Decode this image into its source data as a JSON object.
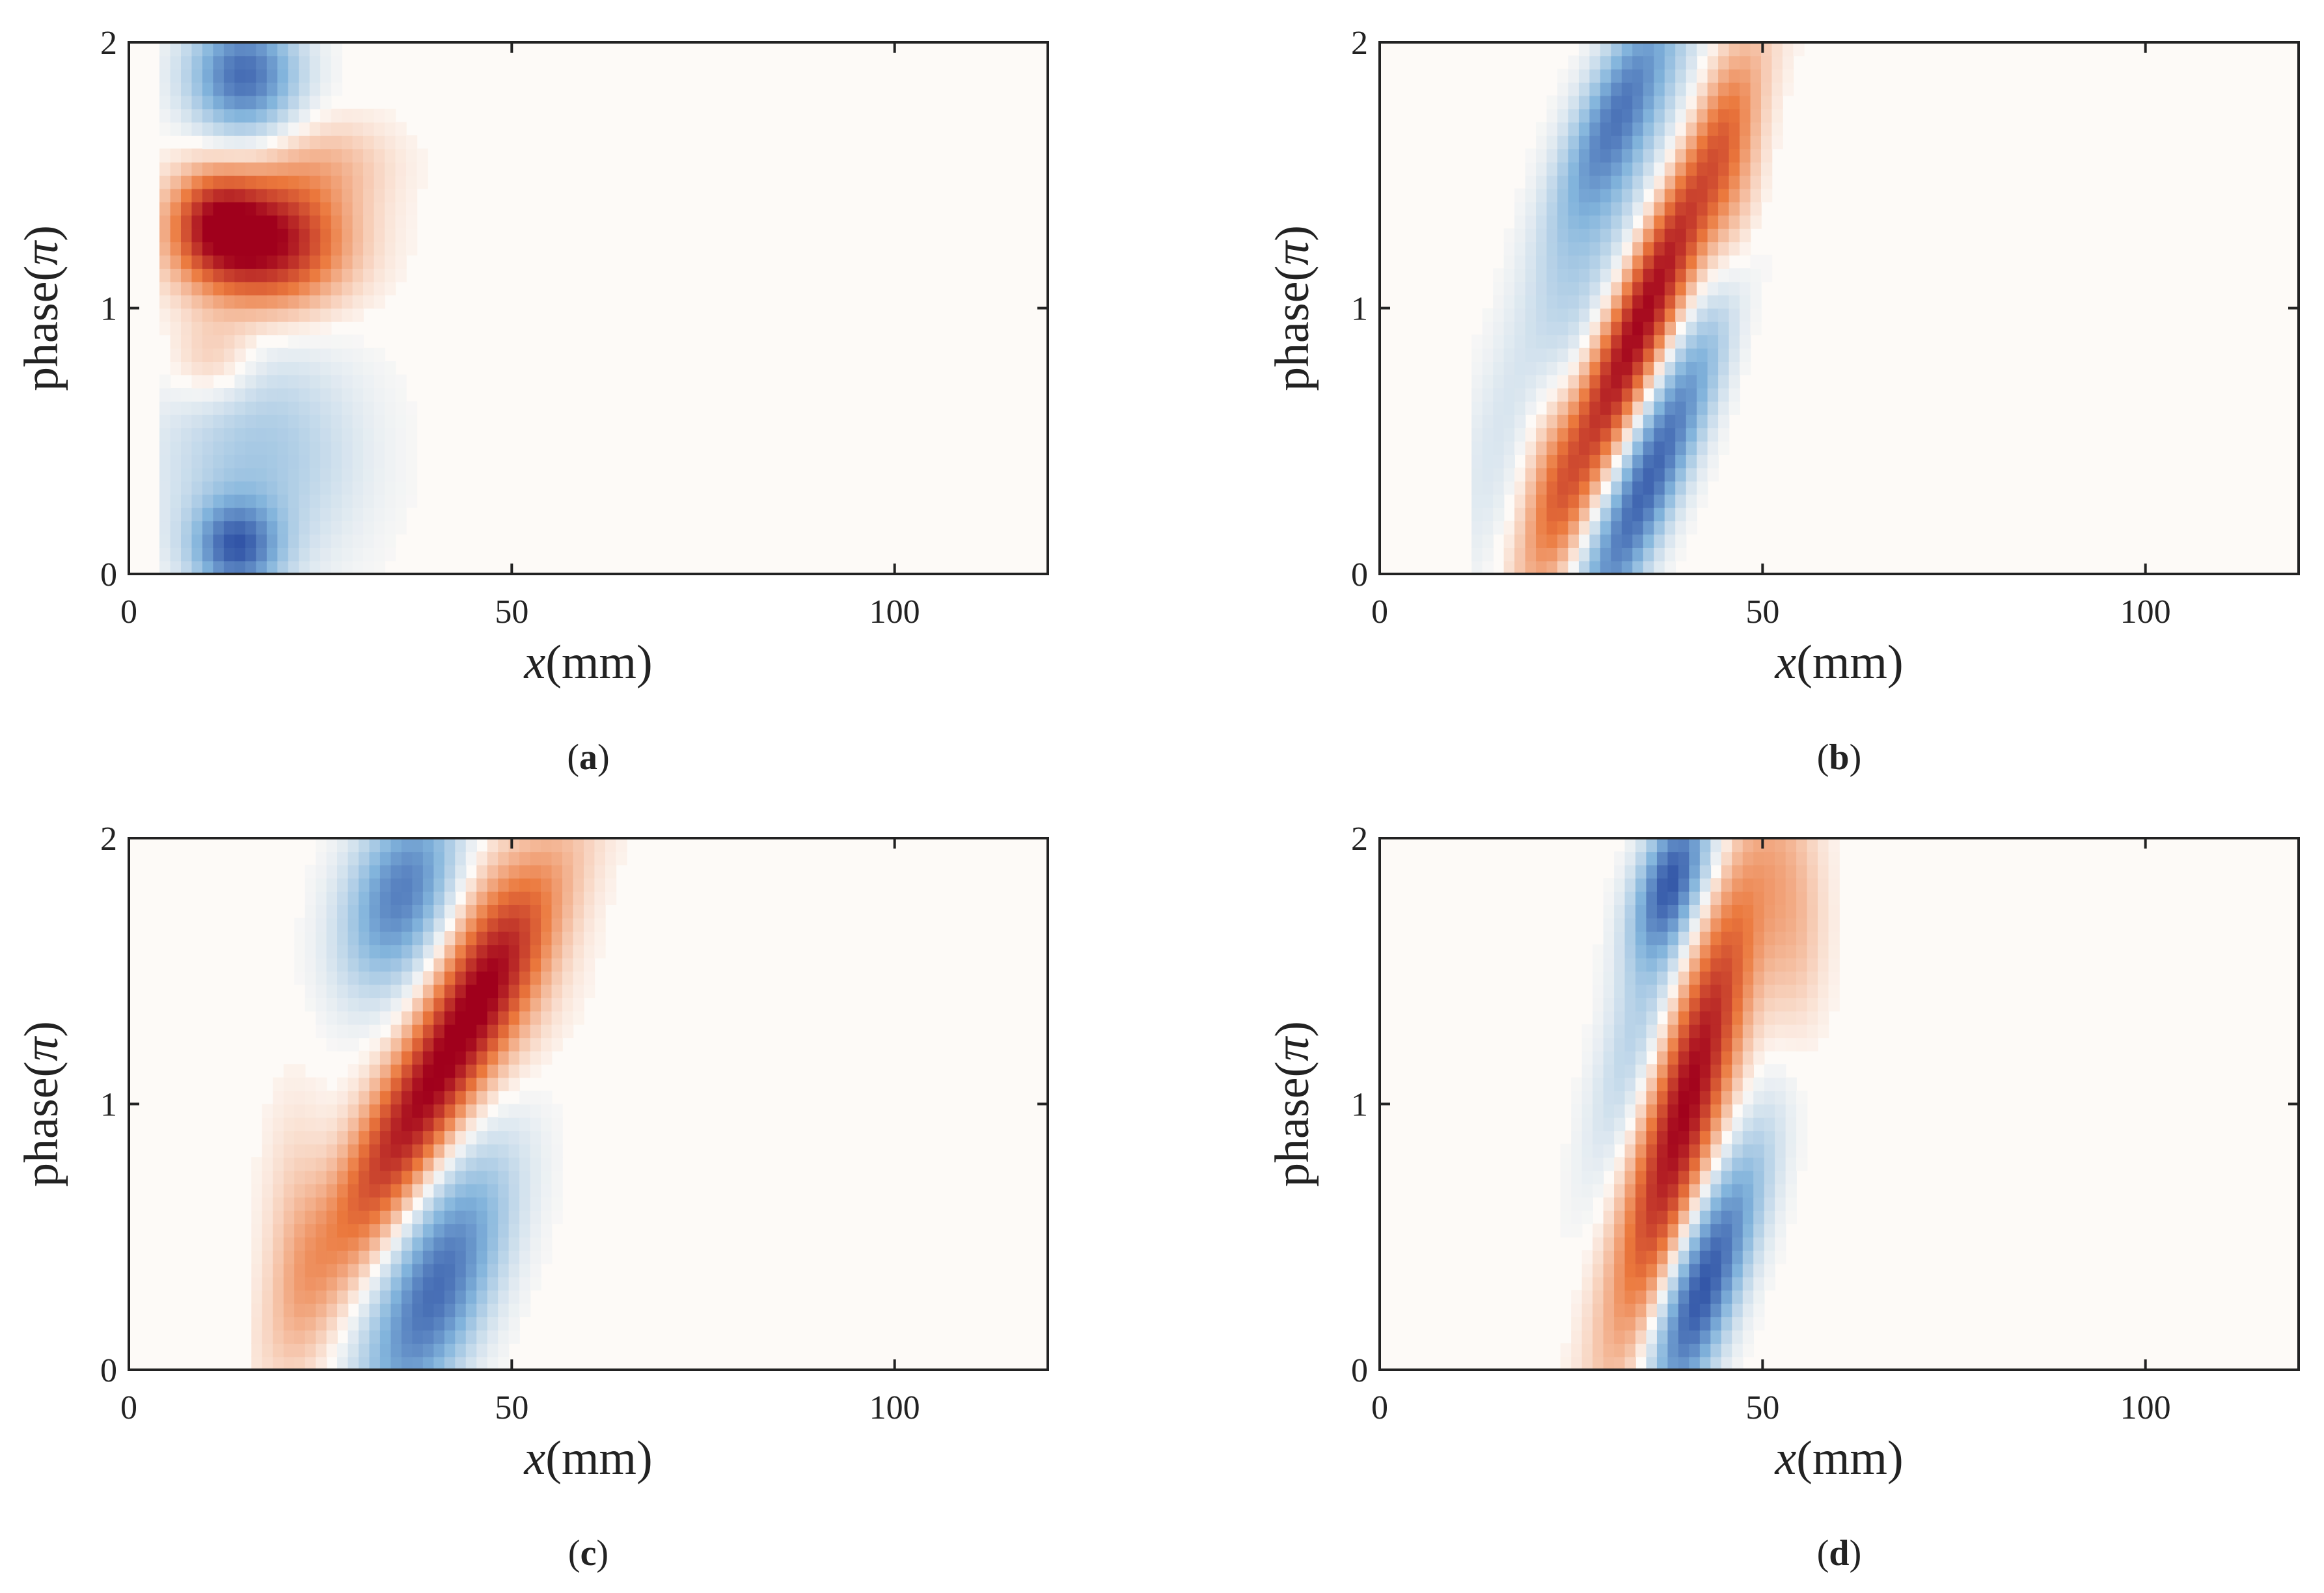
{
  "figure": {
    "colormap": {
      "negative": "#2c4ea3",
      "zero": "#fdfaf7",
      "positive": "#a0001c"
    }
  },
  "chart_data": [
    {
      "type": "heatmap",
      "panel": "a",
      "caption": {
        "open": "(",
        "letter": "a",
        "close": ")"
      },
      "xlabel": {
        "italic": "x",
        "unit": "(mm)"
      },
      "ylabel": {
        "main": "phase(",
        "symbol": "π",
        "close": ")"
      },
      "xlim": [
        0,
        120
      ],
      "ylim": [
        0,
        2
      ],
      "xticks": [
        0,
        50,
        100
      ],
      "xtick_labels": [
        "0",
        "50",
        "100"
      ],
      "yticks": [
        0,
        1,
        2
      ],
      "ytick_labels": [
        "0",
        "1",
        "2"
      ],
      "x_extent": [
        4,
        44
      ],
      "lobes": [
        {
          "x": 15,
          "y": 1.88,
          "sx": 5,
          "sy": 0.16,
          "amp": -0.85,
          "slope": 0
        },
        {
          "x": 18,
          "y": 1.25,
          "sx": 7,
          "sy": 0.17,
          "amp": 1.0,
          "slope": 0
        },
        {
          "x": 11,
          "y": 1.33,
          "sx": 4,
          "sy": 0.14,
          "amp": 0.55,
          "slope": 0
        },
        {
          "x": 14,
          "y": 0.1,
          "sx": 4,
          "sy": 0.12,
          "amp": -0.8,
          "slope": 0
        },
        {
          "x": 17,
          "y": 0.45,
          "sx": 9,
          "sy": 0.3,
          "amp": -0.35,
          "slope": 0
        },
        {
          "x": 11,
          "y": 0.8,
          "sx": 4,
          "sy": 0.12,
          "amp": 0.25,
          "slope": 0
        },
        {
          "x": 26,
          "y": 1.55,
          "sx": 6,
          "sy": 0.12,
          "amp": 0.2,
          "slope": 0
        }
      ]
    },
    {
      "type": "heatmap",
      "panel": "b",
      "caption": {
        "open": "(",
        "letter": "b",
        "close": ")"
      },
      "xlabel": {
        "italic": "x",
        "unit": "(mm)"
      },
      "ylabel": {
        "main": "phase(",
        "symbol": "π",
        "close": ")"
      },
      "xlim": [
        0,
        120
      ],
      "ylim": [
        0,
        2
      ],
      "xticks": [
        0,
        50,
        100
      ],
      "xtick_labels": [
        "0",
        "50",
        "100"
      ],
      "yticks": [
        0,
        1,
        2
      ],
      "ytick_labels": [
        "0",
        "1",
        "2"
      ],
      "x_extent": [
        12,
        60
      ],
      "lobes": [
        {
          "x": 34,
          "y": 0.95,
          "sx": 3.2,
          "sy": 0.55,
          "amp": 1.0,
          "slope": 14
        },
        {
          "x": 35,
          "y": 0.35,
          "sx": 3.2,
          "sy": 0.45,
          "amp": -0.9,
          "slope": 14
        },
        {
          "x": 31,
          "y": 1.75,
          "sx": 3.5,
          "sy": 0.3,
          "amp": -0.65,
          "slope": 14
        },
        {
          "x": 27,
          "y": 1.2,
          "sx": 4.5,
          "sy": 0.7,
          "amp": -0.3,
          "slope": 14
        },
        {
          "x": 46,
          "y": 1.5,
          "sx": 3,
          "sy": 0.35,
          "amp": 0.25,
          "slope": 0
        },
        {
          "x": 22,
          "y": 0.4,
          "sx": 3,
          "sy": 0.3,
          "amp": 0.25,
          "slope": 0
        }
      ]
    },
    {
      "type": "heatmap",
      "panel": "c",
      "caption": {
        "open": "(",
        "letter": "c",
        "close": ")"
      },
      "xlabel": {
        "italic": "x",
        "unit": "(mm)"
      },
      "ylabel": {
        "main": "phase(",
        "symbol": "π",
        "close": ")"
      },
      "xlim": [
        0,
        120
      ],
      "ylim": [
        0,
        2
      ],
      "xticks": [
        0,
        50,
        100
      ],
      "xtick_labels": [
        "0",
        "50",
        "100"
      ],
      "yticks": [
        0,
        1,
        2
      ],
      "ytick_labels": [
        "0",
        "1",
        "2"
      ],
      "x_extent": [
        16,
        70
      ],
      "lobes": [
        {
          "x": 40,
          "y": 1.1,
          "sx": 4.5,
          "sy": 0.5,
          "amp": 1.0,
          "slope": 18
        },
        {
          "x": 40,
          "y": 0.3,
          "sx": 5,
          "sy": 0.35,
          "amp": -0.85,
          "slope": 12
        },
        {
          "x": 36,
          "y": 1.8,
          "sx": 5,
          "sy": 0.25,
          "amp": -0.8,
          "slope": 8
        },
        {
          "x": 47,
          "y": 1.6,
          "sx": 6,
          "sy": 0.3,
          "amp": 0.3,
          "slope": 0
        },
        {
          "x": 22,
          "y": 0.5,
          "sx": 3,
          "sy": 0.35,
          "amp": 0.18,
          "slope": 0
        }
      ]
    },
    {
      "type": "heatmap",
      "panel": "d",
      "caption": {
        "open": "(",
        "letter": "d",
        "close": ")"
      },
      "xlabel": {
        "italic": "x",
        "unit": "(mm)"
      },
      "ylabel": {
        "main": "phase(",
        "symbol": "π",
        "close": ")"
      },
      "xlim": [
        0,
        120
      ],
      "ylim": [
        0,
        2
      ],
      "xticks": [
        0,
        50,
        100
      ],
      "xtick_labels": [
        "0",
        "50",
        "100"
      ],
      "yticks": [
        0,
        1,
        2
      ],
      "ytick_labels": [
        "0",
        "1",
        "2"
      ],
      "x_extent": [
        18,
        62
      ],
      "lobes": [
        {
          "x": 40,
          "y": 1.0,
          "sx": 3.5,
          "sy": 0.6,
          "amp": 1.0,
          "slope": 9
        },
        {
          "x": 41,
          "y": 0.25,
          "sx": 3.2,
          "sy": 0.3,
          "amp": -0.85,
          "slope": 9
        },
        {
          "x": 38,
          "y": 1.85,
          "sx": 3,
          "sy": 0.2,
          "amp": -0.85,
          "slope": 9
        },
        {
          "x": 34,
          "y": 1.3,
          "sx": 3,
          "sy": 0.4,
          "amp": -0.3,
          "slope": 9
        },
        {
          "x": 47,
          "y": 0.6,
          "sx": 3,
          "sy": 0.3,
          "amp": -0.35,
          "slope": 9
        },
        {
          "x": 54,
          "y": 1.7,
          "sx": 3,
          "sy": 0.3,
          "amp": 0.25,
          "slope": 0
        }
      ]
    }
  ]
}
